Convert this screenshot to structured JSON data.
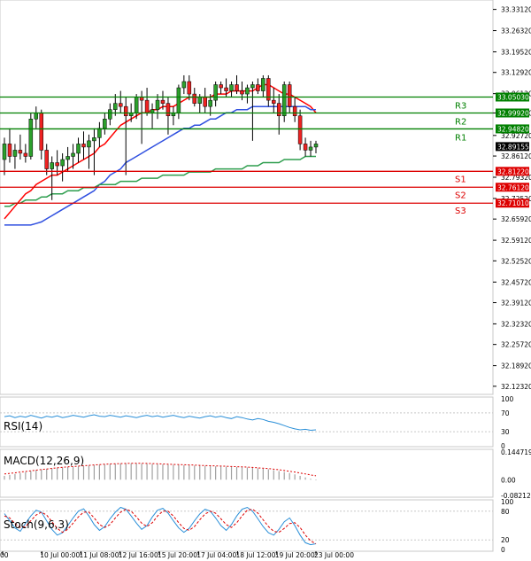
{
  "chart_data": [
    {
      "type": "candlestick",
      "panel": "price",
      "ylim": [
        32.1,
        33.35
      ],
      "y_ticks": [
        "33.33120",
        "33.26320",
        "33.19520",
        "33.12920",
        "33.06120",
        "32.99920",
        "32.92720",
        "32.86120",
        "32.79320",
        "32.72520",
        "32.65920",
        "32.59120",
        "32.52520",
        "32.45720",
        "32.39120",
        "32.32320",
        "32.25720",
        "32.18920",
        "32.12320"
      ],
      "x_ticks": [
        "00",
        "10 Jul 00:00",
        "11 Jul 08:00",
        "12 Jul 16:00",
        "15 Jul 20:00",
        "17 Jul 04:00",
        "18 Jul 12:00",
        "19 Jul 20:00",
        "23 Jul 00:00"
      ],
      "levels": [
        {
          "name": "R3",
          "value": 33.0503,
          "label": "33.05030",
          "color": "#008000"
        },
        {
          "name": "R2",
          "value": 32.9992,
          "label": "32.99920",
          "color": "#008000"
        },
        {
          "name": "R1",
          "value": 32.9482,
          "label": "32.94820",
          "color": "#008000"
        },
        {
          "name": "S1",
          "value": 32.8122,
          "label": "32.81220",
          "color": "#dd0000"
        },
        {
          "name": "S2",
          "value": 32.7612,
          "label": "32.76120",
          "color": "#dd0000"
        },
        {
          "name": "S3",
          "value": 32.7101,
          "label": "32.71010",
          "color": "#dd0000"
        }
      ],
      "current_price": "32.89155",
      "ohlc": [
        [
          32.85,
          32.92,
          32.8,
          32.9
        ],
        [
          32.9,
          32.95,
          32.84,
          32.86
        ],
        [
          32.86,
          32.9,
          32.82,
          32.88
        ],
        [
          32.88,
          32.93,
          32.85,
          32.87
        ],
        [
          32.87,
          32.9,
          32.84,
          32.86
        ],
        [
          32.86,
          33.0,
          32.85,
          32.98
        ],
        [
          32.98,
          33.02,
          32.95,
          33.0
        ],
        [
          33.0,
          33.01,
          32.85,
          32.88
        ],
        [
          32.88,
          32.9,
          32.8,
          32.82
        ],
        [
          32.82,
          32.86,
          32.72,
          32.84
        ],
        [
          32.84,
          32.88,
          32.8,
          32.83
        ],
        [
          32.83,
          32.87,
          32.78,
          32.85
        ],
        [
          32.85,
          32.89,
          32.81,
          32.86
        ],
        [
          32.86,
          32.9,
          32.82,
          32.87
        ],
        [
          32.87,
          32.92,
          32.84,
          32.9
        ],
        [
          32.9,
          32.94,
          32.85,
          32.89
        ],
        [
          32.89,
          32.93,
          32.82,
          32.91
        ],
        [
          32.91,
          32.95,
          32.8,
          32.92
        ],
        [
          32.92,
          32.97,
          32.89,
          32.95
        ],
        [
          32.95,
          33.0,
          32.93,
          32.98
        ],
        [
          32.98,
          33.03,
          32.96,
          33.01
        ],
        [
          33.01,
          33.06,
          32.99,
          33.03
        ],
        [
          33.03,
          33.07,
          33.0,
          33.02
        ],
        [
          33.02,
          33.05,
          32.8,
          32.99
        ],
        [
          32.99,
          33.03,
          32.97,
          33.0
        ],
        [
          33.0,
          33.06,
          32.98,
          33.05
        ],
        [
          33.05,
          33.07,
          32.9,
          33.04
        ],
        [
          33.04,
          33.08,
          32.99,
          33.0
        ],
        [
          33.0,
          33.03,
          32.95,
          33.01
        ],
        [
          33.01,
          33.06,
          32.98,
          33.04
        ],
        [
          33.04,
          33.07,
          33.01,
          33.03
        ],
        [
          33.03,
          33.05,
          32.93,
          32.99
        ],
        [
          32.99,
          33.02,
          32.96,
          33.0
        ],
        [
          33.0,
          33.09,
          32.98,
          33.08
        ],
        [
          33.08,
          33.12,
          33.06,
          33.1
        ],
        [
          33.1,
          33.12,
          33.04,
          33.06
        ],
        [
          33.06,
          33.08,
          33.02,
          33.03
        ],
        [
          33.03,
          33.06,
          33.0,
          33.05
        ],
        [
          33.05,
          33.08,
          33.0,
          33.02
        ],
        [
          33.02,
          33.06,
          32.99,
          33.04
        ],
        [
          33.04,
          33.1,
          33.02,
          33.09
        ],
        [
          33.09,
          33.1,
          33.06,
          33.08
        ],
        [
          33.08,
          33.11,
          33.05,
          33.07
        ],
        [
          33.07,
          33.1,
          33.05,
          33.09
        ],
        [
          33.09,
          33.12,
          33.06,
          33.07
        ],
        [
          33.07,
          33.1,
          33.04,
          33.06
        ],
        [
          33.06,
          33.09,
          33.03,
          33.08
        ],
        [
          33.08,
          33.1,
          32.91,
          33.09
        ],
        [
          33.09,
          33.11,
          33.06,
          33.07
        ],
        [
          33.07,
          33.12,
          33.05,
          33.11
        ],
        [
          33.11,
          33.12,
          33.02,
          33.04
        ],
        [
          33.04,
          33.08,
          33.0,
          33.03
        ],
        [
          33.03,
          33.06,
          32.93,
          32.99
        ],
        [
          32.99,
          33.1,
          32.97,
          33.09
        ],
        [
          33.09,
          33.1,
          33.0,
          33.02
        ],
        [
          33.02,
          33.05,
          32.97,
          32.99
        ],
        [
          32.99,
          33.01,
          32.88,
          32.9
        ],
        [
          32.9,
          32.92,
          32.86,
          32.88
        ],
        [
          32.88,
          32.91,
          32.86,
          32.89
        ],
        [
          32.89,
          32.91,
          32.87,
          32.9
        ]
      ],
      "series": [
        {
          "name": "",
          "color": "#ff0000",
          "values": [
            32.66,
            32.68,
            32.7,
            32.72,
            32.74,
            32.75,
            32.77,
            32.78,
            32.79,
            32.8,
            32.8,
            32.81,
            32.82,
            32.83,
            32.84,
            32.85,
            32.86,
            32.87,
            32.89,
            32.9,
            32.92,
            32.94,
            32.96,
            32.97,
            32.98,
            32.99,
            33.0,
            33.0,
            33.01,
            33.01,
            33.02,
            33.02,
            33.02,
            33.03,
            33.04,
            33.05,
            33.05,
            33.05,
            33.05,
            33.05,
            33.06,
            33.06,
            33.06,
            33.07,
            33.07,
            33.07,
            33.07,
            33.07,
            33.08,
            33.09,
            33.09,
            33.08,
            33.07,
            33.06,
            33.06,
            33.05,
            33.04,
            33.03,
            33.02,
            33.0
          ]
        },
        {
          "name": "",
          "color": "#3050e0",
          "values": [
            32.64,
            32.64,
            32.64,
            32.64,
            32.64,
            32.64,
            32.645,
            32.65,
            32.66,
            32.67,
            32.68,
            32.69,
            32.7,
            32.71,
            32.72,
            32.73,
            32.74,
            32.75,
            32.77,
            32.78,
            32.8,
            32.81,
            32.82,
            32.84,
            32.85,
            32.86,
            32.87,
            32.88,
            32.89,
            32.9,
            32.91,
            32.92,
            32.93,
            32.94,
            32.95,
            32.95,
            32.96,
            32.96,
            32.97,
            32.98,
            32.98,
            32.99,
            33.0,
            33.0,
            33.01,
            33.01,
            33.01,
            33.02,
            33.02,
            33.02,
            33.02,
            33.02,
            33.02,
            33.02,
            33.02,
            33.02,
            33.02,
            33.02,
            33.01,
            33.01
          ]
        },
        {
          "name": "",
          "color": "#2e9e4e",
          "values": [
            32.7,
            32.7,
            32.71,
            32.71,
            32.72,
            32.72,
            32.72,
            32.73,
            32.73,
            32.74,
            32.74,
            32.74,
            32.75,
            32.75,
            32.75,
            32.76,
            32.76,
            32.76,
            32.77,
            32.77,
            32.77,
            32.77,
            32.78,
            32.78,
            32.78,
            32.78,
            32.79,
            32.79,
            32.79,
            32.79,
            32.8,
            32.8,
            32.8,
            32.8,
            32.8,
            32.81,
            32.81,
            32.81,
            32.81,
            32.81,
            32.82,
            32.82,
            32.82,
            32.82,
            32.82,
            32.82,
            32.83,
            32.83,
            32.83,
            32.84,
            32.84,
            32.84,
            32.84,
            32.85,
            32.85,
            32.85,
            32.85,
            32.86,
            32.86,
            32.86
          ]
        }
      ]
    },
    {
      "type": "line",
      "panel": "rsi",
      "label": "RSI(14)",
      "ylim": [
        0,
        100
      ],
      "y_ticks": [
        "100",
        "70",
        "30",
        "0"
      ],
      "series": [
        {
          "name": "",
          "color": "#2a8fd8",
          "values": [
            62,
            64,
            60,
            63,
            61,
            65,
            62,
            59,
            63,
            61,
            64,
            60,
            62,
            65,
            63,
            61,
            64,
            66,
            63,
            62,
            65,
            63,
            61,
            64,
            62,
            60,
            63,
            65,
            62,
            64,
            61,
            63,
            65,
            62,
            60,
            63,
            61,
            59,
            62,
            64,
            61,
            63,
            60,
            58,
            62,
            60,
            57,
            55,
            58,
            56,
            52,
            50,
            47,
            43,
            39,
            36,
            34,
            35,
            33,
            34
          ]
        }
      ]
    },
    {
      "type": "bar",
      "panel": "macd",
      "label": "MACD(12,26,9)",
      "ylim": [
        -0.08212,
        0.144719
      ],
      "y_ticks": [
        "0.144719",
        "0.00",
        "-0.08212"
      ],
      "values": [
        0.02,
        0.025,
        0.03,
        0.035,
        0.04,
        0.045,
        0.05,
        0.054,
        0.057,
        0.06,
        0.062,
        0.064,
        0.066,
        0.068,
        0.07,
        0.072,
        0.074,
        0.076,
        0.078,
        0.08,
        0.082,
        0.083,
        0.084,
        0.085,
        0.085,
        0.085,
        0.084,
        0.083,
        0.082,
        0.081,
        0.08,
        0.079,
        0.078,
        0.077,
        0.076,
        0.075,
        0.074,
        0.073,
        0.072,
        0.071,
        0.07,
        0.069,
        0.068,
        0.067,
        0.066,
        0.065,
        0.064,
        0.062,
        0.06,
        0.058,
        0.055,
        0.05,
        0.045,
        0.04,
        0.035,
        0.028,
        0.02,
        0.012,
        0.005,
        -0.003
      ],
      "signal": [
        0.03,
        0.033,
        0.036,
        0.04,
        0.043,
        0.046,
        0.05,
        0.053,
        0.056,
        0.059,
        0.062,
        0.065,
        0.067,
        0.069,
        0.071,
        0.073,
        0.075,
        0.077,
        0.079,
        0.081,
        0.082,
        0.083,
        0.084,
        0.085,
        0.086,
        0.086,
        0.086,
        0.085,
        0.084,
        0.083,
        0.082,
        0.081,
        0.08,
        0.079,
        0.078,
        0.077,
        0.076,
        0.075,
        0.074,
        0.073,
        0.072,
        0.071,
        0.07,
        0.069,
        0.068,
        0.067,
        0.066,
        0.064,
        0.062,
        0.06,
        0.058,
        0.055,
        0.052,
        0.048,
        0.044,
        0.04,
        0.035,
        0.03,
        0.025,
        0.02
      ]
    },
    {
      "type": "line",
      "panel": "stochastic",
      "label": "Stoch(9,6,3)",
      "ylim": [
        0,
        100
      ],
      "y_ticks": [
        "100",
        "80",
        "20",
        "0"
      ],
      "series": [
        {
          "name": "",
          "color": "#2a8fd8",
          "values": [
            75,
            60,
            45,
            38,
            55,
            70,
            82,
            78,
            60,
            42,
            30,
            35,
            50,
            66,
            80,
            85,
            70,
            52,
            40,
            48,
            64,
            78,
            88,
            84,
            70,
            55,
            42,
            50,
            68,
            82,
            86,
            76,
            60,
            45,
            36,
            44,
            60,
            74,
            84,
            80,
            66,
            50,
            40,
            52,
            70,
            84,
            88,
            80,
            64,
            48,
            35,
            30,
            42,
            58,
            66,
            50,
            30,
            14,
            10,
            12
          ]
        },
        {
          "name": "",
          "color": "#dd0000",
          "values": [
            70,
            66,
            54,
            46,
            48,
            60,
            72,
            78,
            72,
            58,
            44,
            36,
            42,
            55,
            68,
            78,
            78,
            66,
            52,
            46,
            52,
            66,
            78,
            84,
            80,
            68,
            55,
            48,
            56,
            70,
            80,
            80,
            70,
            56,
            44,
            40,
            48,
            62,
            74,
            80,
            76,
            64,
            52,
            46,
            56,
            70,
            82,
            84,
            76,
            62,
            48,
            38,
            36,
            44,
            54,
            56,
            46,
            30,
            18,
            12
          ]
        }
      ]
    }
  ]
}
